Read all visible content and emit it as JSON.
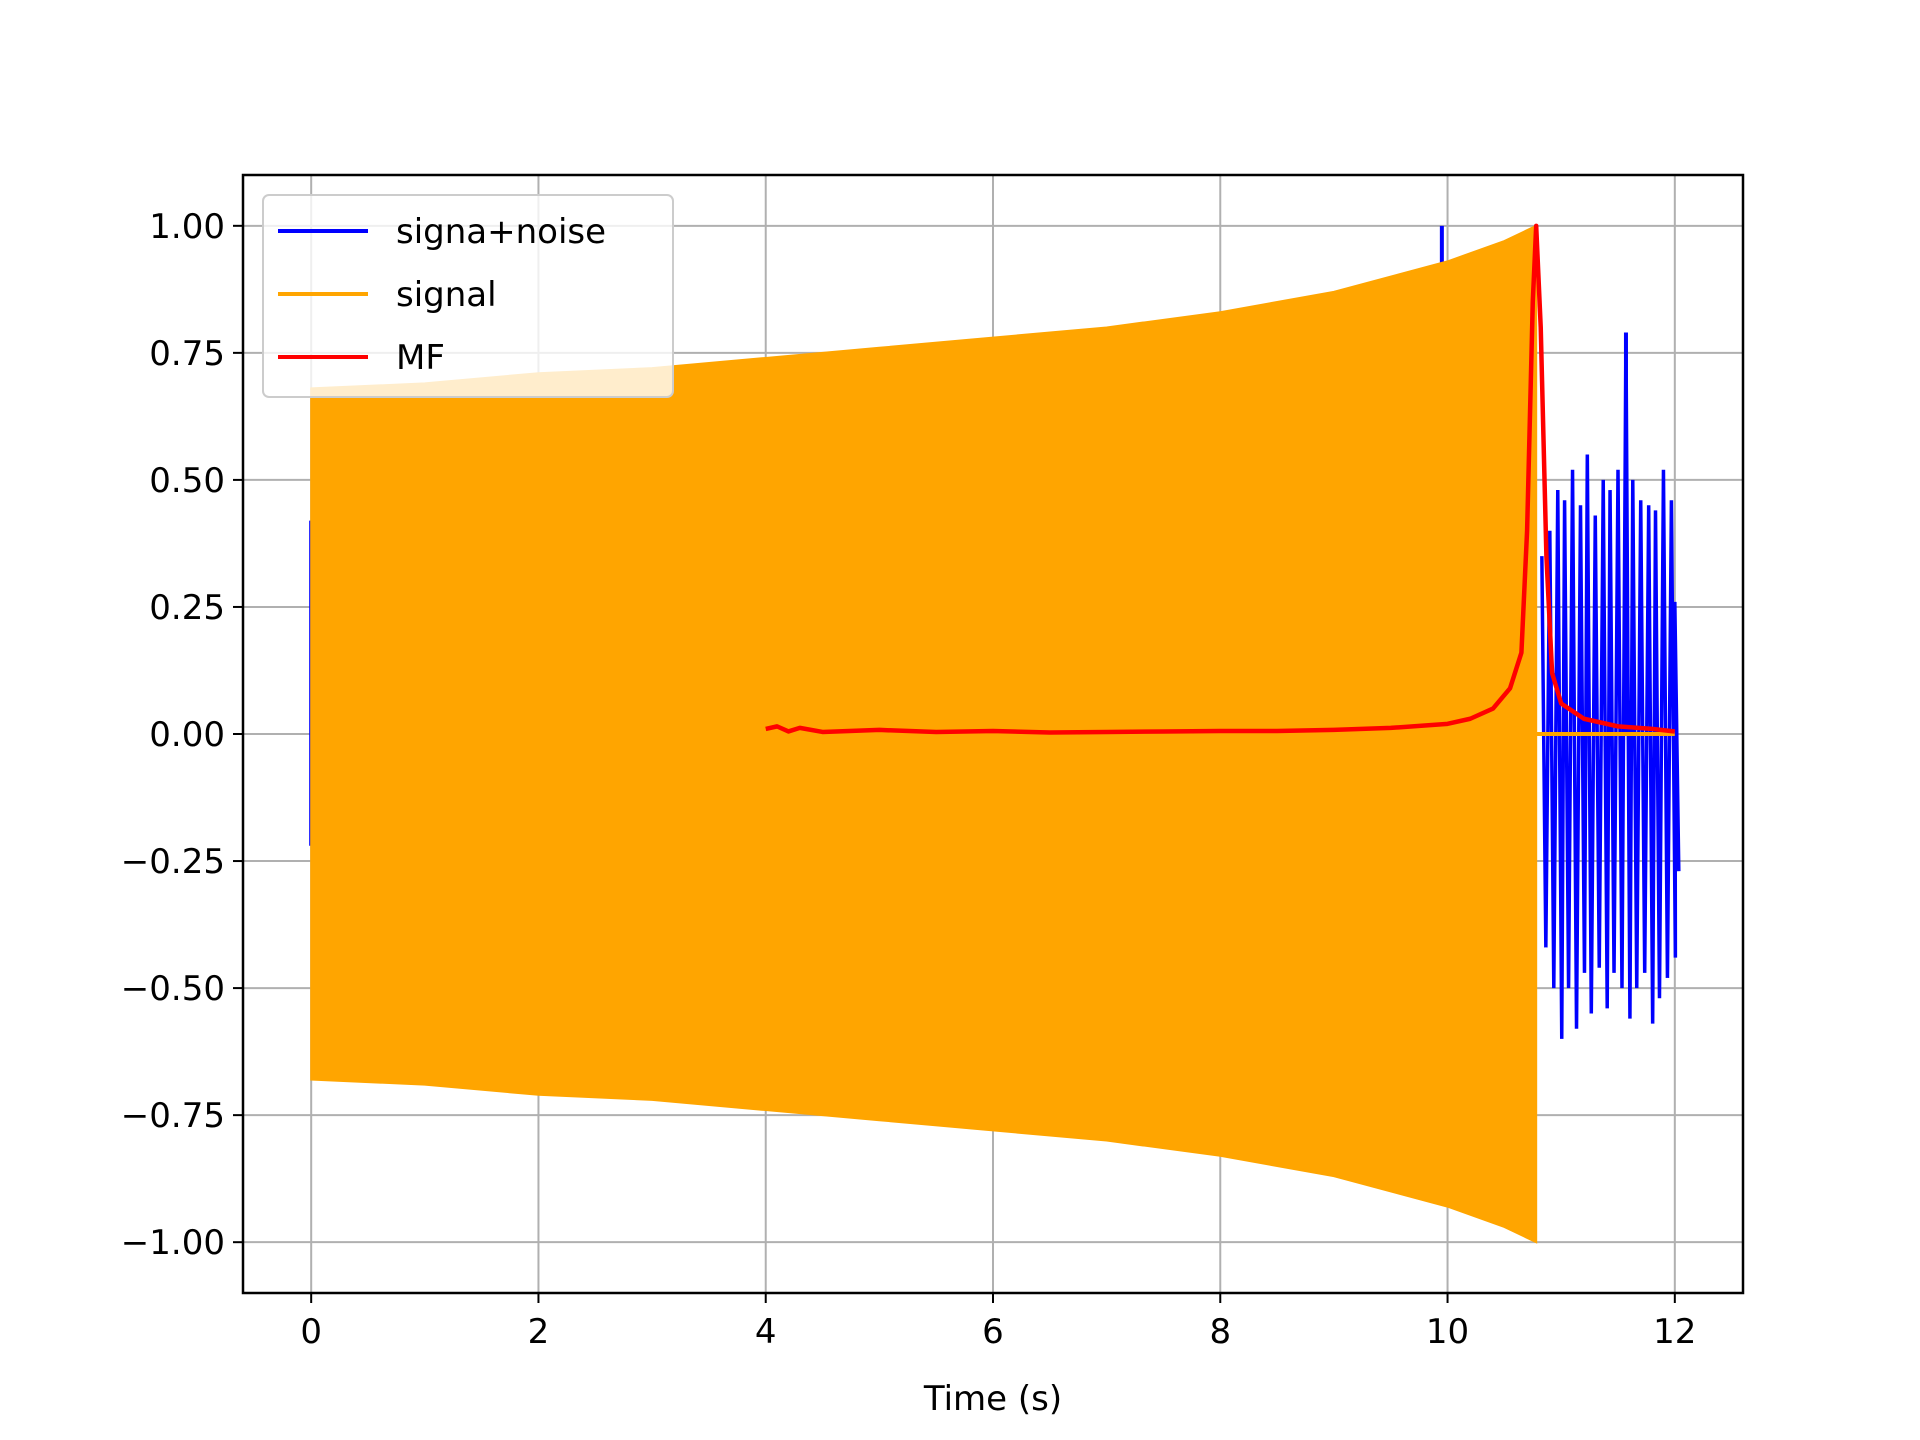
{
  "chart_data": {
    "type": "line",
    "title": "",
    "xlabel": "Time (s)",
    "ylabel": "",
    "xlim": [
      -0.6,
      12.6
    ],
    "ylim": [
      -1.1,
      1.1
    ],
    "grid": true,
    "legend_position": "upper-left",
    "x_ticks": [
      0,
      2,
      4,
      6,
      8,
      10,
      12
    ],
    "x_tick_labels": [
      "0",
      "2",
      "4",
      "6",
      "8",
      "10",
      "12"
    ],
    "y_ticks": [
      1.0,
      0.75,
      0.5,
      0.25,
      0.0,
      -0.25,
      -0.5,
      -0.75,
      -1.0
    ],
    "y_tick_labels": [
      "1.00",
      "0.75",
      "0.50",
      "0.25",
      "0.00",
      "−0.25",
      "−0.50",
      "−0.75",
      "−1.00"
    ],
    "series": [
      {
        "name": "signa+noise",
        "color": "#0000ff",
        "description_kind": "noisy oscillation",
        "noise_segment": {
          "x": [
            10.83,
            10.9,
            10.97,
            11.03,
            11.1,
            11.17,
            11.23,
            11.3,
            11.37,
            11.43,
            11.5,
            11.57,
            11.63,
            11.7,
            11.77,
            11.83,
            11.9,
            11.97,
            12.0
          ],
          "upper": [
            0.35,
            0.4,
            0.48,
            0.46,
            0.52,
            0.45,
            0.55,
            0.43,
            0.5,
            0.48,
            0.52,
            0.79,
            0.5,
            0.46,
            0.45,
            0.44,
            0.52,
            0.46,
            0.26
          ],
          "lower": [
            -0.42,
            -0.5,
            -0.6,
            -0.5,
            -0.58,
            -0.47,
            -0.55,
            -0.46,
            -0.54,
            -0.47,
            -0.5,
            -0.56,
            -0.5,
            -0.47,
            -0.57,
            -0.52,
            -0.48,
            -0.44,
            -0.27
          ]
        },
        "spikes": [
          {
            "x": 9.95,
            "y": 1.0
          },
          {
            "x": 11.57,
            "y": 0.79
          },
          {
            "x": 0.0,
            "y": 0.42
          },
          {
            "x": 0.0,
            "y": -0.22
          }
        ]
      },
      {
        "name": "signal",
        "color": "#ffa500",
        "description_kind": "chirp envelope",
        "envelope_x": [
          0.0,
          1.0,
          2.0,
          3.0,
          4.0,
          5.0,
          6.0,
          7.0,
          8.0,
          9.0,
          10.0,
          10.5,
          10.78
        ],
        "envelope_upper": [
          0.68,
          0.69,
          0.71,
          0.72,
          0.74,
          0.76,
          0.78,
          0.8,
          0.83,
          0.87,
          0.93,
          0.97,
          1.0
        ],
        "envelope_lower": [
          -0.68,
          -0.69,
          -0.71,
          -0.72,
          -0.74,
          -0.76,
          -0.78,
          -0.8,
          -0.83,
          -0.87,
          -0.93,
          -0.97,
          -1.0
        ],
        "end_x": 10.78
      },
      {
        "name": "MF",
        "color": "#ff0000",
        "x": [
          4.0,
          4.1,
          4.2,
          4.3,
          4.5,
          5.0,
          5.5,
          6.0,
          6.5,
          7.0,
          7.5,
          8.0,
          8.5,
          9.0,
          9.5,
          10.0,
          10.2,
          10.4,
          10.55,
          10.65,
          10.7,
          10.75,
          10.78,
          10.82,
          10.87,
          10.92,
          11.0,
          11.2,
          11.5,
          11.8,
          12.0
        ],
        "y": [
          0.01,
          0.015,
          0.005,
          0.012,
          0.004,
          0.008,
          0.004,
          0.006,
          0.003,
          0.004,
          0.005,
          0.006,
          0.006,
          0.008,
          0.012,
          0.02,
          0.03,
          0.05,
          0.09,
          0.16,
          0.4,
          0.85,
          1.0,
          0.8,
          0.35,
          0.12,
          0.06,
          0.03,
          0.015,
          0.01,
          0.005
        ]
      }
    ]
  }
}
